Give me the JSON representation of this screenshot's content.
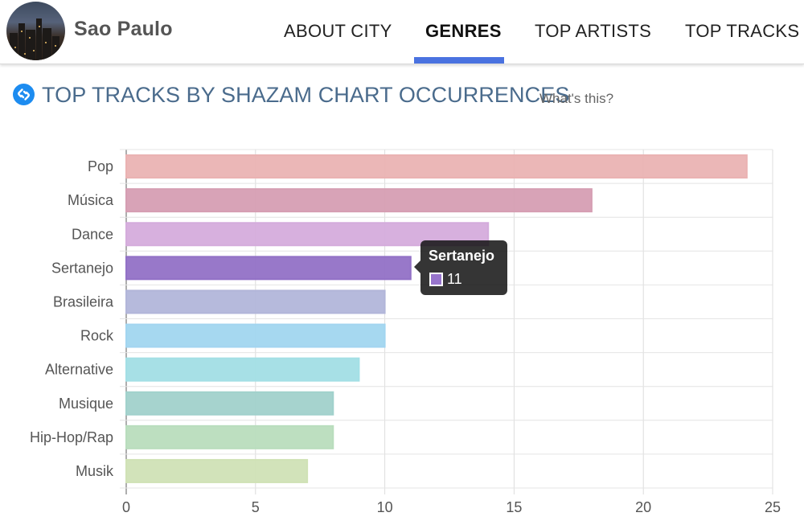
{
  "header": {
    "city": "Sao Paulo",
    "tabs": [
      {
        "label": "ABOUT CITY"
      },
      {
        "label": "GENRES"
      },
      {
        "label": "TOP ARTISTS"
      },
      {
        "label": "TOP TRACKS"
      }
    ],
    "active_tab": "GENRES",
    "accent_color": "#4a72e0"
  },
  "section": {
    "title": "TOP TRACKS BY SHAZAM CHART OCCURRENCES",
    "help_link": "What's this?",
    "icon": "shazam-icon"
  },
  "chart_data": {
    "type": "bar",
    "orientation": "horizontal",
    "categories": [
      "Pop",
      "Música",
      "Dance",
      "Sertanejo",
      "Brasileira",
      "Rock",
      "Alternative",
      "Musique",
      "Hip-Hop/Rap",
      "Musik"
    ],
    "values": [
      24,
      18,
      14,
      11,
      10,
      10,
      9,
      8,
      8,
      7
    ],
    "colors": [
      "#f1b8b8",
      "#dca3b8",
      "#dbb1e3",
      "#9774cc",
      "#b7bce0",
      "#a7dcf7",
      "#a8e6ec",
      "#a6d7d2",
      "#bfe4c3",
      "#d6e9bc"
    ],
    "xlim": [
      0,
      25
    ],
    "xticks": [
      "0",
      "5",
      "10",
      "15",
      "20",
      "25"
    ],
    "grid": true,
    "tooltip": {
      "label": "Sertanejo",
      "value": "11",
      "color": "#9774cc"
    }
  }
}
